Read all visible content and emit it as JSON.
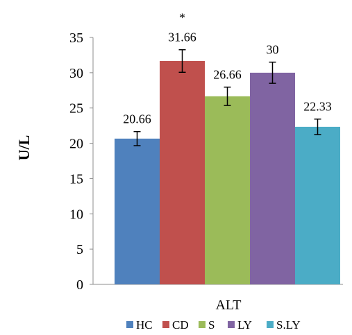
{
  "chart_data": {
    "type": "bar",
    "title": "",
    "xlabel": "ALT",
    "ylabel": "U/L",
    "ylim": [
      0,
      35
    ],
    "yticks": [
      "0",
      "5",
      "10",
      "15",
      "20",
      "25",
      "30",
      "35"
    ],
    "grid": false,
    "legend_position": "bottom",
    "series": [
      {
        "name": "HC",
        "value": 20.66,
        "label": "20.66",
        "error": 1.0,
        "color": "#4F81BD",
        "annotation": ""
      },
      {
        "name": "CD",
        "value": 31.66,
        "label": "31.66",
        "error": 1.6,
        "color": "#C0504D",
        "annotation": "*"
      },
      {
        "name": "S",
        "value": 26.66,
        "label": "26.66",
        "error": 1.3,
        "color": "#9BBB59",
        "annotation": ""
      },
      {
        "name": "LY",
        "value": 30,
        "label": "30",
        "error": 1.5,
        "color": "#8064A2",
        "annotation": ""
      },
      {
        "name": "S.LY",
        "value": 22.33,
        "label": "22.33",
        "error": 1.1,
        "color": "#4BACC6",
        "annotation": ""
      }
    ]
  }
}
